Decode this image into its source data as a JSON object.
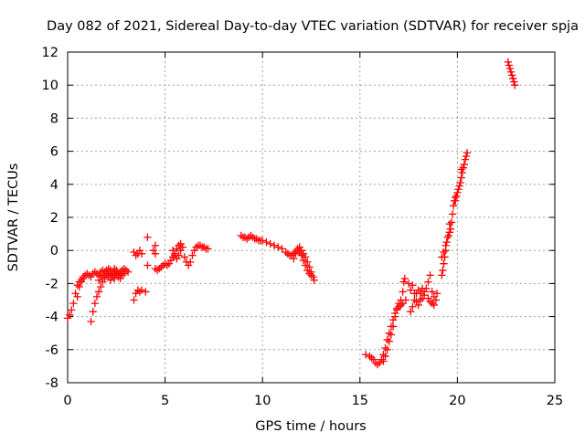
{
  "chart_data": {
    "type": "scatter",
    "title": "Day 082 of 2021, Sidereal Day-to-day VTEC variation (SDTVAR) for receiver spja",
    "xlabel": "GPS time / hours",
    "ylabel": "SDTVAR / TECUs",
    "xlim": [
      0,
      25
    ],
    "ylim": [
      -8,
      12
    ],
    "xticks": [
      0,
      5,
      10,
      15,
      20,
      25
    ],
    "yticks": [
      -8,
      -6,
      -4,
      -2,
      0,
      2,
      4,
      6,
      8,
      10,
      12
    ],
    "xtick_labels": [
      "0",
      "5",
      "10",
      "15",
      "20",
      "25"
    ],
    "ytick_labels": [
      "-8",
      "-6",
      "-4",
      "-2",
      "0",
      "2",
      "4",
      "6",
      "8",
      "10",
      "12"
    ],
    "grid": true,
    "marker": "plus",
    "color": "#ff0000",
    "series": [
      {
        "name": "spja",
        "points": [
          [
            0.0,
            -4.1
          ],
          [
            0.1,
            -3.9
          ],
          [
            0.2,
            -3.6
          ],
          [
            0.3,
            -3.2
          ],
          [
            0.4,
            -2.6
          ],
          [
            0.5,
            -2.1
          ],
          [
            0.6,
            -1.9
          ],
          [
            0.7,
            -1.8
          ],
          [
            0.8,
            -1.6
          ],
          [
            0.9,
            -1.5
          ],
          [
            1.0,
            -1.4
          ],
          [
            1.1,
            -1.5
          ],
          [
            1.2,
            -1.6
          ],
          [
            1.3,
            -1.4
          ],
          [
            1.4,
            -1.3
          ],
          [
            1.5,
            -1.4
          ],
          [
            1.6,
            -1.5
          ],
          [
            1.7,
            -1.3
          ],
          [
            1.8,
            -1.2
          ],
          [
            1.9,
            -1.3
          ],
          [
            2.0,
            -1.2
          ],
          [
            2.1,
            -1.1
          ],
          [
            2.2,
            -1.2
          ],
          [
            2.3,
            -1.3
          ],
          [
            2.4,
            -1.1
          ],
          [
            2.5,
            -1.2
          ],
          [
            2.6,
            -1.4
          ],
          [
            2.7,
            -1.3
          ],
          [
            2.8,
            -1.2
          ],
          [
            2.9,
            -1.1
          ],
          [
            3.0,
            -1.2
          ],
          [
            3.1,
            -1.3
          ],
          [
            1.2,
            -4.3
          ],
          [
            1.3,
            -3.7
          ],
          [
            1.4,
            -3.2
          ],
          [
            1.5,
            -2.8
          ],
          [
            1.6,
            -2.5
          ],
          [
            1.7,
            -2.2
          ],
          [
            1.8,
            -1.9
          ],
          [
            1.9,
            -1.7
          ],
          [
            2.0,
            -1.5
          ],
          [
            2.1,
            -1.4
          ],
          [
            2.2,
            -1.5
          ],
          [
            2.3,
            -1.6
          ],
          [
            2.4,
            -1.7
          ],
          [
            2.5,
            -1.5
          ],
          [
            2.6,
            -1.4
          ],
          [
            2.7,
            -1.5
          ],
          [
            0.5,
            -2.8
          ],
          [
            0.6,
            -2.2
          ],
          [
            0.7,
            -1.9
          ],
          [
            0.8,
            -1.7
          ],
          [
            1.6,
            -1.8
          ],
          [
            1.7,
            -1.6
          ],
          [
            1.8,
            -1.5
          ],
          [
            1.9,
            -1.6
          ],
          [
            2.0,
            -1.4
          ],
          [
            2.1,
            -1.6
          ],
          [
            2.2,
            -1.8
          ],
          [
            2.3,
            -1.5
          ],
          [
            2.4,
            -1.3
          ],
          [
            2.5,
            -1.4
          ],
          [
            2.6,
            -1.6
          ],
          [
            2.7,
            -1.7
          ],
          [
            2.8,
            -1.5
          ],
          [
            2.9,
            -1.4
          ],
          [
            3.4,
            -0.1
          ],
          [
            3.5,
            -0.3
          ],
          [
            3.6,
            -0.2
          ],
          [
            3.7,
            0.0
          ],
          [
            3.8,
            -0.2
          ],
          [
            3.4,
            -3.0
          ],
          [
            3.5,
            -2.6
          ],
          [
            3.6,
            -2.4
          ],
          [
            3.7,
            -2.5
          ],
          [
            3.8,
            -2.4
          ],
          [
            4.0,
            -2.5
          ],
          [
            4.1,
            -0.9
          ],
          [
            4.1,
            0.8
          ],
          [
            4.5,
            0.3
          ],
          [
            4.4,
            0.0
          ],
          [
            4.5,
            -0.2
          ],
          [
            4.5,
            -1.1
          ],
          [
            4.6,
            -1.2
          ],
          [
            4.7,
            -1.1
          ],
          [
            4.8,
            -1.0
          ],
          [
            4.9,
            -0.9
          ],
          [
            5.0,
            -0.8
          ],
          [
            5.1,
            -0.9
          ],
          [
            5.2,
            -0.8
          ],
          [
            5.3,
            -0.6
          ],
          [
            5.4,
            -0.4
          ],
          [
            5.5,
            -0.2
          ],
          [
            5.6,
            0.1
          ],
          [
            5.7,
            0.3
          ],
          [
            5.8,
            0.4
          ],
          [
            5.9,
            0.2
          ],
          [
            6.0,
            -0.4
          ],
          [
            6.1,
            -0.7
          ],
          [
            6.2,
            -0.9
          ],
          [
            6.3,
            -0.7
          ],
          [
            6.4,
            -0.3
          ],
          [
            6.5,
            0.0
          ],
          [
            6.6,
            0.2
          ],
          [
            6.7,
            0.3
          ],
          [
            6.8,
            0.3
          ],
          [
            6.9,
            0.2
          ],
          [
            7.0,
            0.2
          ],
          [
            7.1,
            0.1
          ],
          [
            7.2,
            0.1
          ],
          [
            5.4,
            0.0
          ],
          [
            5.5,
            -0.3
          ],
          [
            5.6,
            -0.5
          ],
          [
            5.7,
            -0.3
          ],
          [
            5.8,
            0.0
          ],
          [
            8.9,
            0.9
          ],
          [
            9.0,
            0.8
          ],
          [
            9.1,
            0.8
          ],
          [
            9.2,
            0.7
          ],
          [
            9.3,
            0.8
          ],
          [
            9.4,
            0.9
          ],
          [
            9.5,
            0.8
          ],
          [
            9.6,
            0.7
          ],
          [
            9.7,
            0.7
          ],
          [
            9.8,
            0.6
          ],
          [
            9.9,
            0.6
          ],
          [
            10.0,
            0.6
          ],
          [
            10.2,
            0.5
          ],
          [
            10.4,
            0.4
          ],
          [
            10.6,
            0.3
          ],
          [
            10.8,
            0.2
          ],
          [
            11.0,
            0.1
          ],
          [
            11.2,
            -0.1
          ],
          [
            11.3,
            -0.2
          ],
          [
            11.4,
            -0.3
          ],
          [
            11.5,
            -0.3
          ],
          [
            11.6,
            -0.2
          ],
          [
            11.7,
            -0.1
          ],
          [
            11.8,
            0.1
          ],
          [
            11.9,
            0.2
          ],
          [
            12.0,
            0.0
          ],
          [
            12.1,
            -0.2
          ],
          [
            12.2,
            -0.4
          ],
          [
            12.3,
            -0.7
          ],
          [
            12.4,
            -1.0
          ],
          [
            12.5,
            -1.3
          ],
          [
            12.6,
            -1.6
          ],
          [
            12.65,
            -1.8
          ],
          [
            11.6,
            -0.5
          ],
          [
            11.7,
            -0.2
          ],
          [
            11.8,
            0.0
          ],
          [
            11.9,
            -0.1
          ],
          [
            12.0,
            -0.3
          ],
          [
            12.1,
            -0.6
          ],
          [
            12.2,
            -0.9
          ],
          [
            12.3,
            -1.2
          ],
          [
            12.4,
            -1.4
          ],
          [
            12.5,
            -1.5
          ],
          [
            15.3,
            -6.3
          ],
          [
            15.5,
            -6.4
          ],
          [
            15.6,
            -6.5
          ],
          [
            15.7,
            -6.6
          ],
          [
            15.8,
            -6.8
          ],
          [
            15.9,
            -6.9
          ],
          [
            16.0,
            -6.8
          ],
          [
            16.1,
            -6.6
          ],
          [
            16.2,
            -6.3
          ],
          [
            16.3,
            -5.9
          ],
          [
            16.4,
            -5.4
          ],
          [
            16.5,
            -5.0
          ],
          [
            16.6,
            -4.6
          ],
          [
            16.7,
            -4.2
          ],
          [
            16.8,
            -3.8
          ],
          [
            16.9,
            -3.5
          ],
          [
            17.0,
            -3.2
          ],
          [
            17.1,
            -3.0
          ],
          [
            17.2,
            -2.5
          ],
          [
            17.25,
            -1.9
          ],
          [
            17.3,
            -1.7
          ],
          [
            17.35,
            -3.0
          ],
          [
            16.2,
            -6.7
          ],
          [
            16.3,
            -6.4
          ],
          [
            16.4,
            -6.0
          ],
          [
            16.5,
            -5.5
          ],
          [
            16.6,
            -5.1
          ],
          [
            16.7,
            -4.6
          ],
          [
            16.8,
            -4.0
          ],
          [
            16.9,
            -3.6
          ],
          [
            17.0,
            -3.4
          ],
          [
            17.1,
            -3.3
          ],
          [
            17.2,
            -3.2
          ],
          [
            17.5,
            -2.0
          ],
          [
            17.6,
            -3.7
          ],
          [
            17.7,
            -3.4
          ],
          [
            17.8,
            -3.0
          ],
          [
            17.9,
            -2.6
          ],
          [
            18.0,
            -2.4
          ],
          [
            18.1,
            -2.6
          ],
          [
            18.2,
            -2.9
          ],
          [
            18.3,
            -2.7
          ],
          [
            18.4,
            -2.3
          ],
          [
            18.5,
            -1.9
          ],
          [
            18.6,
            -1.5
          ],
          [
            18.7,
            -2.5
          ],
          [
            18.8,
            -3.3
          ],
          [
            18.9,
            -3.0
          ],
          [
            18.95,
            -2.6
          ],
          [
            17.6,
            -2.4
          ],
          [
            17.7,
            -2.1
          ],
          [
            17.8,
            -2.6
          ],
          [
            17.9,
            -3.1
          ],
          [
            18.0,
            -3.3
          ],
          [
            18.1,
            -3.0
          ],
          [
            18.2,
            -2.3
          ],
          [
            18.3,
            -2.5
          ],
          [
            18.5,
            -2.9
          ],
          [
            18.6,
            -3.1
          ],
          [
            18.7,
            -3.2
          ],
          [
            18.8,
            -2.8
          ],
          [
            19.2,
            -1.5
          ],
          [
            19.25,
            -1.2
          ],
          [
            19.3,
            -0.8
          ],
          [
            19.35,
            -0.4
          ],
          [
            19.4,
            0.0
          ],
          [
            19.45,
            0.5
          ],
          [
            19.5,
            0.8
          ],
          [
            19.55,
            0.9
          ],
          [
            19.6,
            1.1
          ],
          [
            19.65,
            1.3
          ],
          [
            19.7,
            1.7
          ],
          [
            19.75,
            2.2
          ],
          [
            19.8,
            2.7
          ],
          [
            19.85,
            3.0
          ],
          [
            19.9,
            3.2
          ],
          [
            19.95,
            3.3
          ],
          [
            20.0,
            3.5
          ],
          [
            20.05,
            3.7
          ],
          [
            20.1,
            3.9
          ],
          [
            20.15,
            4.1
          ],
          [
            20.2,
            4.4
          ],
          [
            20.25,
            4.7
          ],
          [
            20.3,
            5.0
          ],
          [
            20.35,
            5.2
          ],
          [
            20.4,
            5.5
          ],
          [
            20.45,
            5.7
          ],
          [
            20.5,
            5.9
          ],
          [
            19.2,
            -0.4
          ],
          [
            19.3,
            -0.1
          ],
          [
            19.4,
            0.3
          ],
          [
            19.6,
            1.6
          ],
          [
            19.9,
            3.0
          ],
          [
            20.2,
            4.9
          ],
          [
            22.6,
            11.4
          ],
          [
            22.65,
            11.2
          ],
          [
            22.7,
            11.0
          ],
          [
            22.75,
            10.8
          ],
          [
            22.8,
            10.6
          ],
          [
            22.85,
            10.4
          ],
          [
            22.9,
            10.2
          ],
          [
            22.95,
            10.0
          ]
        ]
      }
    ]
  }
}
